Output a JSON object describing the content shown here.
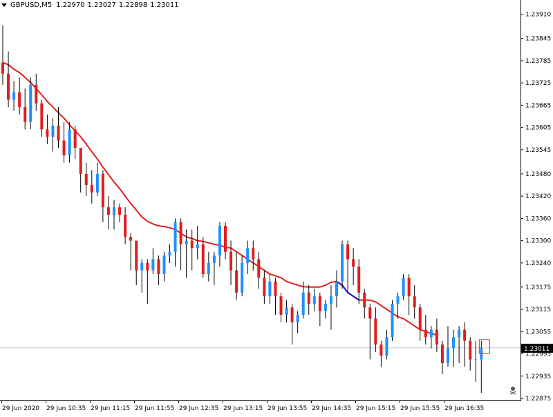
{
  "header": {
    "symbol": "GBPUSD,M5",
    "open": "1.22970",
    "high": "1.23027",
    "low": "1.22898",
    "close": "1.23011"
  },
  "colors": {
    "bull": "#1e90ff",
    "bear": "#e21d1d",
    "wick": "#000000",
    "ma": "#e21d1d",
    "ma_segment": "#1010e0",
    "grid": "#c8c8c8",
    "current_price_box": "#000000"
  },
  "icons": [
    "dropdown-triangle-icon",
    "skull-icon"
  ],
  "chart_data": {
    "type": "candlestick",
    "title": "GBPUSD,M5",
    "ylim": [
      1.22875,
      1.2393
    ],
    "y_ticks": [
      "1.23910",
      "1.23845",
      "1.23785",
      "1.23725",
      "1.23665",
      "1.23605",
      "1.23545",
      "1.23480",
      "1.23420",
      "1.23360",
      "1.23300",
      "1.23240",
      "1.23175",
      "1.23115",
      "1.23055",
      "1.22995",
      "1.22935",
      "1.22875"
    ],
    "x_ticks": [
      "29 Jun 2020",
      "29 Jun 10:35",
      "29 Jun 11:15",
      "29 Jun 11:55",
      "29 Jun 12:35",
      "29 Jun 13:15",
      "29 Jun 13:55",
      "29 Jun 14:35",
      "29 Jun 15:15",
      "29 Jun 15:55",
      "29 Jun 16:35"
    ],
    "current_price": "1.23011",
    "candles": [
      [
        1.2378,
        1.2388,
        1.2372,
        1.2375
      ],
      [
        1.2375,
        1.2381,
        1.2366,
        1.2368
      ],
      [
        1.2368,
        1.2373,
        1.2365,
        1.237
      ],
      [
        1.237,
        1.2374,
        1.2364,
        1.2366
      ],
      [
        1.2366,
        1.2371,
        1.236,
        1.2362
      ],
      [
        1.2362,
        1.2374,
        1.236,
        1.2372
      ],
      [
        1.2372,
        1.2375,
        1.2365,
        1.2367
      ],
      [
        1.2367,
        1.2368,
        1.2358,
        1.236
      ],
      [
        1.236,
        1.2364,
        1.2356,
        1.2358
      ],
      [
        1.2358,
        1.2363,
        1.2354,
        1.2361
      ],
      [
        1.2361,
        1.2366,
        1.2355,
        1.2357
      ],
      [
        1.2357,
        1.2362,
        1.2351,
        1.2353
      ],
      [
        1.2353,
        1.2362,
        1.2351,
        1.236
      ],
      [
        1.236,
        1.2361,
        1.2352,
        1.2355
      ],
      [
        1.2355,
        1.2355,
        1.2343,
        1.2348
      ],
      [
        1.2348,
        1.2351,
        1.2342,
        1.2345
      ],
      [
        1.2345,
        1.2349,
        1.234,
        1.2343
      ],
      [
        1.2343,
        1.2351,
        1.2342,
        1.2348
      ],
      [
        1.2348,
        1.2349,
        1.2335,
        1.2339
      ],
      [
        1.2339,
        1.2342,
        1.2333,
        1.2337
      ],
      [
        1.2337,
        1.2341,
        1.2333,
        1.2339
      ],
      [
        1.2339,
        1.234,
        1.2335,
        1.2337
      ],
      [
        1.2337,
        1.2339,
        1.2329,
        1.2331
      ],
      [
        1.2331,
        1.2332,
        1.2322,
        1.233
      ],
      [
        1.233,
        1.233,
        1.2318,
        1.2322
      ],
      [
        1.2322,
        1.2325,
        1.2316,
        1.2324
      ],
      [
        1.2324,
        1.2325,
        1.2313,
        1.2322
      ],
      [
        1.2322,
        1.2328,
        1.2321,
        1.2325
      ],
      [
        1.2325,
        1.2326,
        1.2318,
        1.2321
      ],
      [
        1.2321,
        1.2327,
        1.2319,
        1.2326
      ],
      [
        1.2326,
        1.2329,
        1.2324,
        1.2327
      ],
      [
        1.2327,
        1.2336,
        1.2323,
        1.2335
      ],
      [
        1.2335,
        1.2336,
        1.2322,
        1.2329
      ],
      [
        1.2329,
        1.2333,
        1.232,
        1.233
      ],
      [
        1.233,
        1.2333,
        1.2322,
        1.2328
      ],
      [
        1.2328,
        1.2334,
        1.2325,
        1.2329
      ],
      [
        1.2329,
        1.2331,
        1.232,
        1.2321
      ],
      [
        1.2321,
        1.2327,
        1.2319,
        1.2324
      ],
      [
        1.2324,
        1.2327,
        1.2318,
        1.2326
      ],
      [
        1.2326,
        1.2335,
        1.2323,
        1.2334
      ],
      [
        1.2334,
        1.2335,
        1.2325,
        1.2327
      ],
      [
        1.2327,
        1.233,
        1.2318,
        1.2322
      ],
      [
        1.2322,
        1.2327,
        1.2314,
        1.2316
      ],
      [
        1.2316,
        1.2326,
        1.2315,
        1.2324
      ],
      [
        1.2324,
        1.233,
        1.2321,
        1.2328
      ],
      [
        1.2328,
        1.233,
        1.2322,
        1.2325
      ],
      [
        1.2325,
        1.2327,
        1.2317,
        1.232
      ],
      [
        1.232,
        1.2322,
        1.2313,
        1.2315
      ],
      [
        1.2315,
        1.2321,
        1.2313,
        1.2319
      ],
      [
        1.2319,
        1.232,
        1.231,
        1.2315
      ],
      [
        1.2315,
        1.2316,
        1.2308,
        1.231
      ],
      [
        1.231,
        1.2314,
        1.2308,
        1.2312
      ],
      [
        1.2312,
        1.2313,
        1.2302,
        1.2308
      ],
      [
        1.2308,
        1.2311,
        1.2305,
        1.231
      ],
      [
        1.231,
        1.2319,
        1.2309,
        1.2316
      ],
      [
        1.2316,
        1.2318,
        1.231,
        1.2313
      ],
      [
        1.2313,
        1.2317,
        1.2311,
        1.2315
      ],
      [
        1.2315,
        1.2316,
        1.2307,
        1.2311
      ],
      [
        1.2311,
        1.2314,
        1.2309,
        1.2313
      ],
      [
        1.2313,
        1.2318,
        1.2306,
        1.2315
      ],
      [
        1.2315,
        1.2322,
        1.2312,
        1.2319
      ],
      [
        1.2319,
        1.233,
        1.2317,
        1.2329
      ],
      [
        1.2329,
        1.233,
        1.2316,
        1.2325
      ],
      [
        1.2325,
        1.2328,
        1.2318,
        1.2323
      ],
      [
        1.2323,
        1.2325,
        1.2313,
        1.2316
      ],
      [
        1.2316,
        1.2317,
        1.2309,
        1.2312
      ],
      [
        1.2312,
        1.2313,
        1.2298,
        1.2309
      ],
      [
        1.2309,
        1.2312,
        1.23,
        1.2302
      ],
      [
        1.2302,
        1.2303,
        1.2296,
        1.2299
      ],
      [
        1.2299,
        1.2306,
        1.2298,
        1.2304
      ],
      [
        1.2304,
        1.2314,
        1.2303,
        1.2313
      ],
      [
        1.2313,
        1.2316,
        1.2309,
        1.2315
      ],
      [
        1.2315,
        1.2321,
        1.2314,
        1.232
      ],
      [
        1.232,
        1.2321,
        1.231,
        1.2315
      ],
      [
        1.2315,
        1.2318,
        1.2309,
        1.2312
      ],
      [
        1.2312,
        1.2313,
        1.2303,
        1.2306
      ],
      [
        1.2306,
        1.231,
        1.2302,
        1.2304
      ],
      [
        1.2304,
        1.2307,
        1.2301,
        1.2306
      ],
      [
        1.2306,
        1.2309,
        1.23,
        1.2302
      ],
      [
        1.2302,
        1.2303,
        1.2294,
        1.2297
      ],
      [
        1.2297,
        1.2307,
        1.2296,
        1.2301
      ],
      [
        1.2301,
        1.2306,
        1.2296,
        1.2304
      ],
      [
        1.2304,
        1.2307,
        1.2297,
        1.2306
      ],
      [
        1.2306,
        1.2308,
        1.2296,
        1.2303
      ],
      [
        1.2303,
        1.2304,
        1.2295,
        1.2298
      ],
      [
        1.2298,
        1.2303,
        1.2292,
        1.2298
      ],
      [
        1.2298,
        1.2303,
        1.2289,
        1.2301
      ]
    ],
    "ma": [
      1.2378,
      1.23774,
      1.23762,
      1.23753,
      1.2374,
      1.23726,
      1.2371,
      1.23693,
      1.23675,
      1.2366,
      1.23645,
      1.2363,
      1.23612,
      1.23596,
      1.2358,
      1.2356,
      1.2354,
      1.2352,
      1.23498,
      1.23478,
      1.23458,
      1.2344,
      1.2342,
      1.234,
      1.23382,
      1.23364,
      1.23352,
      1.23345,
      1.2334,
      1.23338,
      1.23335,
      1.2333,
      1.2332,
      1.2331,
      1.23306,
      1.233,
      1.23298,
      1.23294,
      1.2329,
      1.23288,
      1.23282,
      1.2328,
      1.2327,
      1.2326,
      1.2325,
      1.2324,
      1.2323,
      1.2322,
      1.2321,
      1.23205,
      1.232,
      1.2319,
      1.23185,
      1.2318,
      1.23176,
      1.23175,
      1.23175,
      1.23175,
      1.2318,
      1.23188,
      1.2319,
      1.2318,
      1.2316,
      1.2315,
      1.2314,
      1.2314,
      1.2314,
      1.23135,
      1.23125,
      1.23115,
      1.23105,
      1.23095,
      1.2309,
      1.2308,
      1.2307,
      1.2306,
      1.23055,
      1.2305,
      1.23045
    ]
  }
}
